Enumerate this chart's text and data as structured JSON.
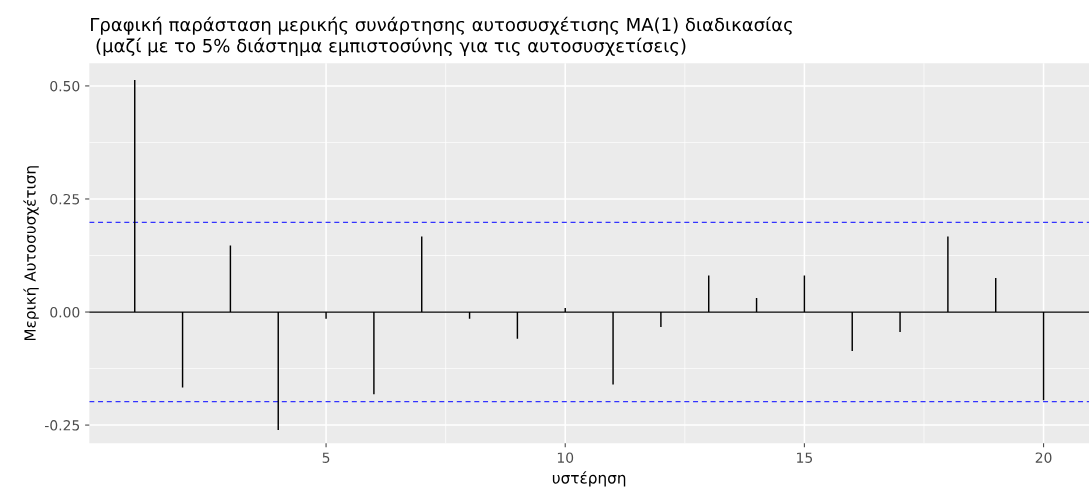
{
  "chart_data": {
    "type": "bar",
    "title": "Γραφική παράσταση μερικής συνάρτησης αυτοσυσχέτισης MA(1) διαδικασίας\n (μαζί με το 5% διάστημα εμπιστοσύνης για τις αυτοσυσχετίσεις)",
    "xlabel": "υστέρηση",
    "ylabel": "Μερική Αυτοσυσχέτιση",
    "x": [
      1,
      2,
      3,
      4,
      5,
      6,
      7,
      8,
      9,
      10,
      11,
      12,
      13,
      14,
      15,
      16,
      17,
      18,
      19,
      20
    ],
    "values": [
      0.513,
      -0.167,
      0.147,
      -0.261,
      -0.015,
      -0.182,
      0.167,
      -0.015,
      -0.059,
      0.009,
      -0.16,
      -0.033,
      0.081,
      0.031,
      0.081,
      -0.086,
      -0.044,
      0.167,
      0.075,
      -0.195
    ],
    "color": "#000000",
    "xlim": [
      0.05,
      20.95
    ],
    "xticks": [
      5,
      10,
      15,
      20
    ],
    "ylim": [
      -0.29,
      0.55
    ],
    "yticks": [
      {
        "value": -0.25,
        "label": "-0.25"
      },
      {
        "value": 0,
        "label": "0.00"
      },
      {
        "value": 0.25,
        "label": "0.25"
      },
      {
        "value": 0.5,
        "label": "0.50"
      }
    ],
    "ref_lines": [
      {
        "axis": "y",
        "value": 0,
        "color": "#000000",
        "line_style": "solid"
      },
      {
        "axis": "y",
        "value": 0.198,
        "color": "#3333ff",
        "line_style": "dashed"
      },
      {
        "axis": "y",
        "value": -0.198,
        "color": "#3333ff",
        "line_style": "dashed"
      }
    ],
    "grid": true
  }
}
